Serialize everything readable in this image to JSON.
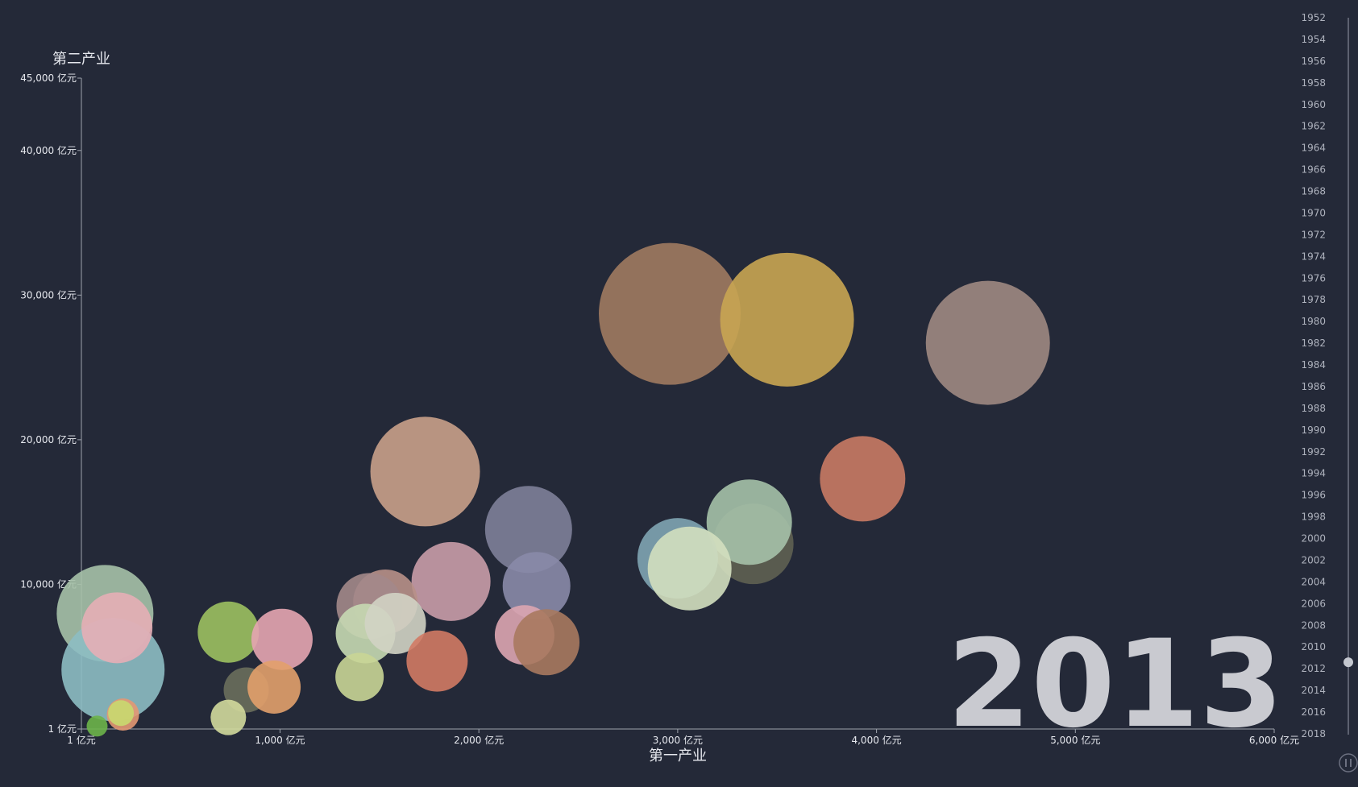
{
  "chart_data": {
    "type": "scatter",
    "xlabel": "第一产业",
    "ylabel": "第二产业",
    "xlim": [
      1,
      6000
    ],
    "ylim": [
      1,
      45000
    ],
    "x_ticks": [
      "1 亿元",
      "1,000 亿元",
      "2,000 亿元",
      "3,000 亿元",
      "4,000 亿元",
      "5,000 亿元",
      "6,000 亿元"
    ],
    "x_tick_values": [
      1,
      1000,
      2000,
      3000,
      4000,
      5000,
      6000
    ],
    "y_ticks": [
      "1 亿元",
      "10,000 亿元",
      "20,000 亿元",
      "30,000 亿元",
      "40,000 亿元",
      "45,000 亿元"
    ],
    "y_tick_values": [
      1,
      10000,
      20000,
      30000,
      40000,
      45000
    ],
    "current_year": "2013",
    "timeline_years": [
      "1952",
      "1954",
      "1956",
      "1958",
      "1960",
      "1962",
      "1964",
      "1966",
      "1968",
      "1970",
      "1972",
      "1974",
      "1976",
      "1978",
      "1980",
      "1982",
      "1984",
      "1986",
      "1988",
      "1990",
      "1992",
      "1994",
      "1996",
      "1998",
      "2000",
      "2002",
      "2004",
      "2006",
      "2008",
      "2010",
      "2012",
      "2014",
      "2016",
      "2018"
    ],
    "timeline_position": 0.9,
    "points": [
      {
        "x": 2960,
        "y": 28700,
        "r": 88,
        "color": "#a07a60"
      },
      {
        "x": 3550,
        "y": 28300,
        "r": 83,
        "color": "#c9a552"
      },
      {
        "x": 4560,
        "y": 26700,
        "r": 77,
        "color": "#9f8882"
      },
      {
        "x": 1730,
        "y": 17800,
        "r": 68,
        "color": "#c9a08a"
      },
      {
        "x": 2250,
        "y": 13800,
        "r": 54,
        "color": "#7e7f99"
      },
      {
        "x": 3930,
        "y": 17300,
        "r": 53,
        "color": "#c97a64"
      },
      {
        "x": 3380,
        "y": 12800,
        "r": 50,
        "color": "#5f6152"
      },
      {
        "x": 3360,
        "y": 14300,
        "r": 53,
        "color": "#a5c1a9"
      },
      {
        "x": 3000,
        "y": 11800,
        "r": 50,
        "color": "#7fa4b3"
      },
      {
        "x": 3060,
        "y": 11100,
        "r": 52,
        "color": "#d3dfbf"
      },
      {
        "x": 1860,
        "y": 10200,
        "r": 49,
        "color": "#c99ca8"
      },
      {
        "x": 2290,
        "y": 9900,
        "r": 42,
        "color": "#8a8aa8"
      },
      {
        "x": 1530,
        "y": 8800,
        "r": 40,
        "color": "#b89088"
      },
      {
        "x": 1450,
        "y": 8500,
        "r": 41,
        "color": "#a3888a"
      },
      {
        "x": 1430,
        "y": 6600,
        "r": 37,
        "color": "#c6d9b3"
      },
      {
        "x": 1580,
        "y": 7300,
        "r": 38,
        "color": "#d2d3c4"
      },
      {
        "x": 1790,
        "y": 4700,
        "r": 38,
        "color": "#d27a64"
      },
      {
        "x": 2230,
        "y": 6500,
        "r": 37,
        "color": "#dda5b1"
      },
      {
        "x": 2340,
        "y": 6000,
        "r": 41,
        "color": "#a8795f"
      },
      {
        "x": 1400,
        "y": 3600,
        "r": 30,
        "color": "#c9d596"
      },
      {
        "x": 120,
        "y": 8000,
        "r": 60,
        "color": "#a6c1a8"
      },
      {
        "x": 160,
        "y": 4100,
        "r": 64,
        "color": "#8dbcc3"
      },
      {
        "x": 180,
        "y": 7000,
        "r": 44,
        "color": "#e5aeb6"
      },
      {
        "x": 740,
        "y": 6700,
        "r": 38,
        "color": "#9cc060"
      },
      {
        "x": 830,
        "y": 2700,
        "r": 28,
        "color": "#6a6e5c"
      },
      {
        "x": 1010,
        "y": 6200,
        "r": 38,
        "color": "#e5a5b1"
      },
      {
        "x": 970,
        "y": 2900,
        "r": 33,
        "color": "#e2a06c"
      },
      {
        "x": 740,
        "y": 800,
        "r": 22,
        "color": "#d2d99c"
      },
      {
        "x": 210,
        "y": 1000,
        "r": 20,
        "color": "#e39873"
      },
      {
        "x": 200,
        "y": 1100,
        "r": 16,
        "color": "#c8d96f"
      },
      {
        "x": 80,
        "y": 200,
        "r": 13,
        "color": "#6db44a"
      }
    ]
  },
  "controls": {
    "play_icon": "pause-icon",
    "handle_color": "#c4c7cf"
  }
}
